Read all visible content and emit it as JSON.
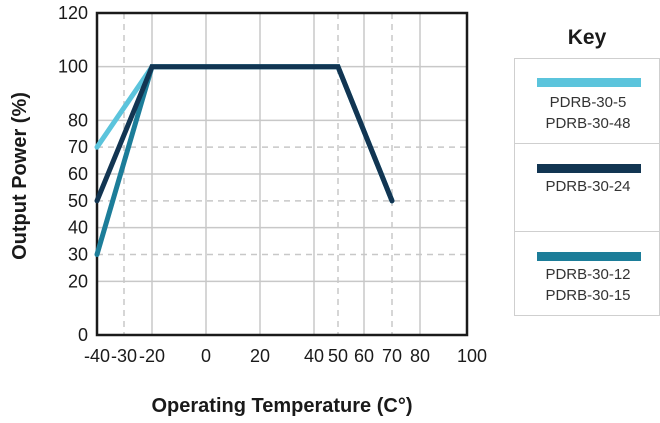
{
  "chart_data": {
    "type": "line",
    "xlabel": "Operating Temperature (C°)",
    "ylabel": "Output Power (%)",
    "x_ticks": [
      -40,
      -30,
      -20,
      0,
      20,
      40,
      50,
      60,
      70,
      80,
      100
    ],
    "x_tick_labels": [
      "-40",
      "-30",
      "-20",
      "0",
      "20",
      "40",
      "50",
      "60",
      "70",
      "80",
      "100"
    ],
    "y_ticks": [
      0,
      20,
      30,
      40,
      50,
      60,
      70,
      80,
      100,
      120
    ],
    "y_tick_labels": [
      "0",
      "20",
      "30",
      "40",
      "50",
      "60",
      "70",
      "80",
      "100",
      "120"
    ],
    "xlim": [
      -40,
      100
    ],
    "ylim": [
      0,
      120
    ],
    "grid": true,
    "legend_title": "Key",
    "legend_position": "right",
    "series": [
      {
        "names": [
          "PDRB-30-5",
          "PDRB-30-48"
        ],
        "color": "#5bc4dc",
        "x": [
          -40,
          -20,
          50,
          70
        ],
        "y": [
          70,
          100,
          100,
          50
        ]
      },
      {
        "names": [
          "PDRB-30-24"
        ],
        "color": "#123552",
        "x": [
          -40,
          -20,
          50,
          70
        ],
        "y": [
          50,
          100,
          100,
          50
        ]
      },
      {
        "names": [
          "PDRB-30-12",
          "PDRB-30-15"
        ],
        "color": "#1c7d99",
        "x": [
          -40,
          -20,
          50,
          70
        ],
        "y": [
          30,
          100,
          100,
          50
        ]
      }
    ]
  }
}
